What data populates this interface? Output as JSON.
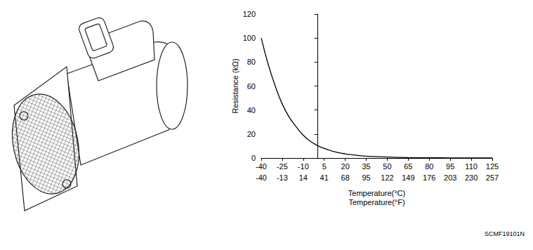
{
  "chart_data": {
    "type": "line",
    "xlabel": "Temperature(°C)",
    "x2label": "Temperature(°F)",
    "ylabel": "Resistance (kΩ)",
    "x": [
      -40,
      -35,
      -30,
      -25,
      -20,
      -15,
      -10,
      -5,
      0,
      5,
      10,
      15,
      20,
      30,
      40,
      50,
      65,
      80,
      95,
      110,
      125
    ],
    "values": [
      100,
      78,
      60,
      45,
      34,
      26,
      19,
      14,
      10.5,
      8,
      6,
      4.5,
      3.5,
      2,
      1.2,
      0.8,
      0.4,
      0.2,
      0.1,
      0.05,
      0.03
    ],
    "color": "#000000",
    "xlim": [
      -40,
      125
    ],
    "xticks": [
      -40,
      -25,
      -10,
      5,
      20,
      35,
      50,
      65,
      80,
      95,
      110,
      125
    ],
    "x2lim": [
      -40,
      257
    ],
    "x2ticks": [
      -40,
      -13,
      14,
      41,
      68,
      95,
      122,
      149,
      176,
      203,
      230,
      257
    ],
    "ylim": [
      0,
      120
    ],
    "yticks": [
      0,
      20,
      40,
      60,
      80,
      100,
      120
    ],
    "grid": false
  },
  "figure_code": "SCMF19101N"
}
